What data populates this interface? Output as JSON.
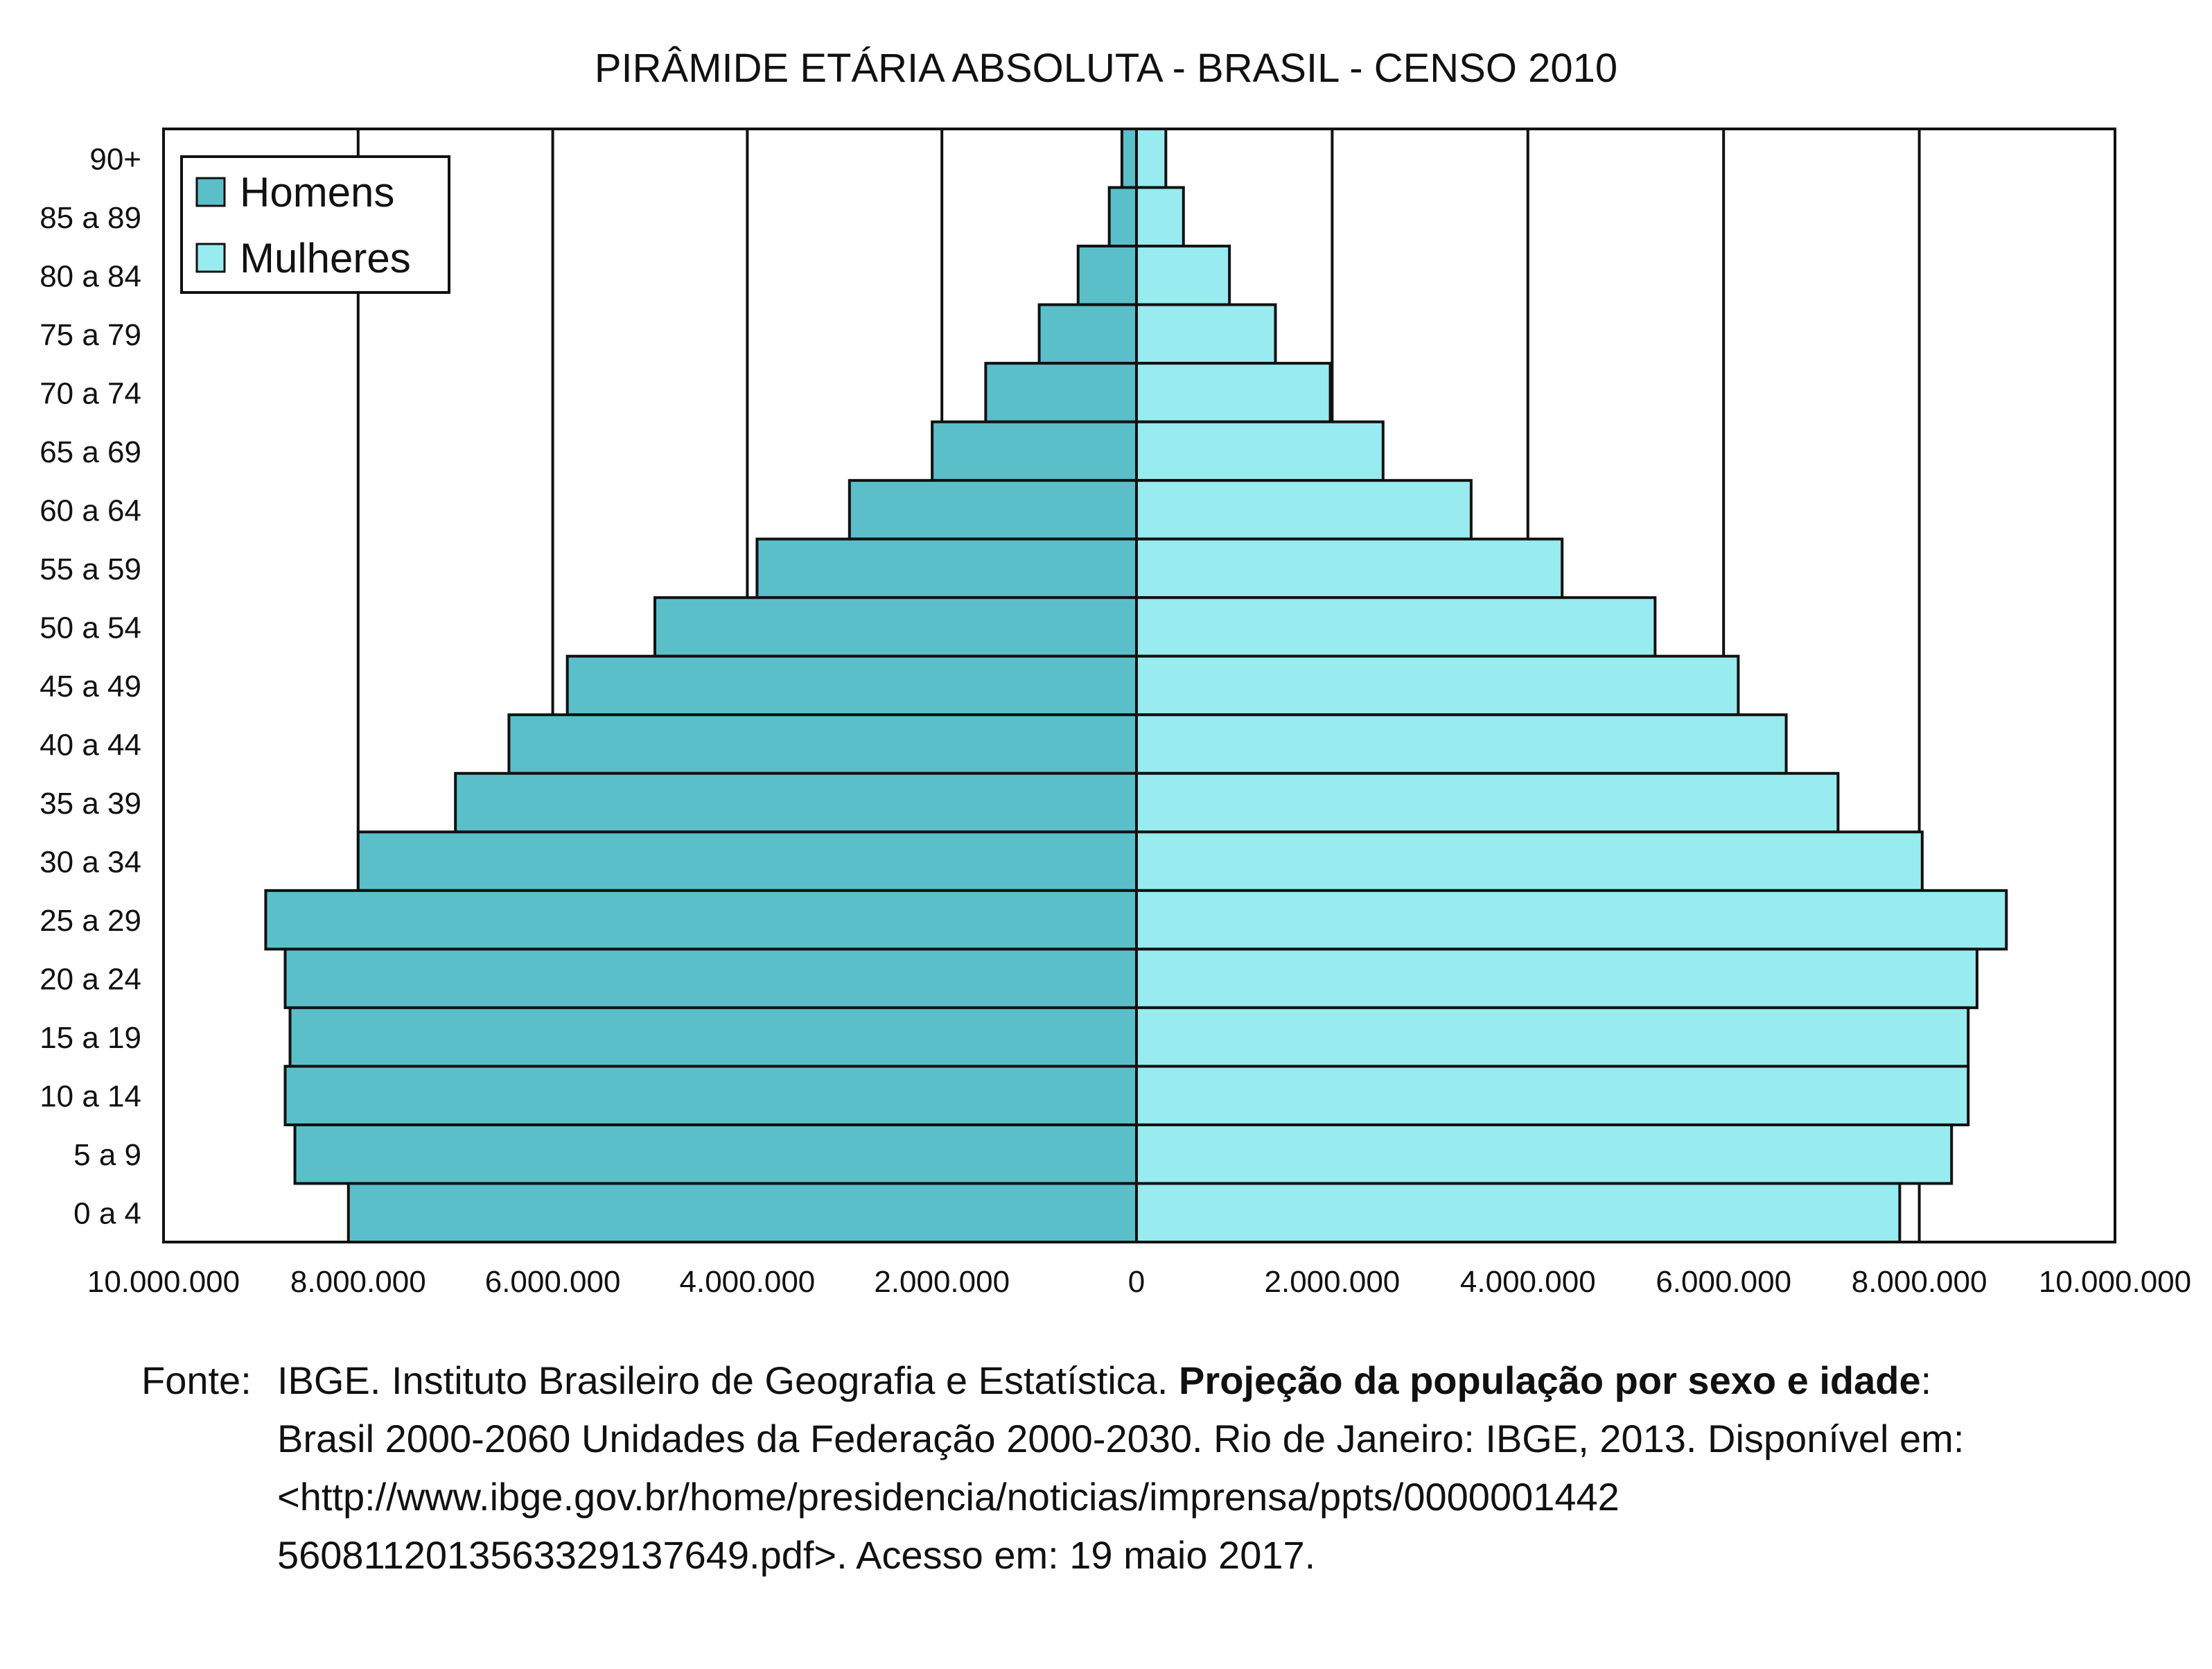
{
  "chart_data": {
    "type": "bar",
    "title": "PIRÂMIDE ETÁRIA ABSOLUTA - BRASIL - CENSO 2010",
    "categories": [
      "90+",
      "85 a 89",
      "80 a 84",
      "75 a 79",
      "70 a 74",
      "65 a 69",
      "60 a 64",
      "55 a 59",
      "50 a 54",
      "45 a 49",
      "40 a 44",
      "35 a 39",
      "30 a 34",
      "25 a 29",
      "20 a 24",
      "15 a 19",
      "10 a 14",
      "5 a 9",
      "0 a 4"
    ],
    "series": [
      {
        "name": "Homens",
        "color": "#5bbfca",
        "values": [
          150000,
          280000,
          600000,
          1000000,
          1550000,
          2100000,
          2950000,
          3900000,
          4950000,
          5850000,
          6450000,
          7000000,
          8000000,
          8950000,
          8750000,
          8700000,
          8750000,
          8650000,
          8100000
        ]
      },
      {
        "name": "Mulheres",
        "color": "#98ebee",
        "values": [
          300000,
          480000,
          950000,
          1420000,
          1980000,
          2520000,
          3420000,
          4350000,
          5300000,
          6150000,
          6640000,
          7170000,
          8030000,
          8890000,
          8590000,
          8500000,
          8500000,
          8330000,
          7800000
        ]
      }
    ],
    "xlim": [
      -10000000,
      10000000
    ],
    "xticks": [
      {
        "value": -10000000,
        "label": "10.000.000"
      },
      {
        "value": -8000000,
        "label": "8.000.000"
      },
      {
        "value": -6000000,
        "label": "6.000.000"
      },
      {
        "value": -4000000,
        "label": "4.000.000"
      },
      {
        "value": -2000000,
        "label": "2.000.000"
      },
      {
        "value": 0,
        "label": "0"
      },
      {
        "value": 2000000,
        "label": "2.000.000"
      },
      {
        "value": 4000000,
        "label": "4.000.000"
      },
      {
        "value": 6000000,
        "label": "6.000.000"
      },
      {
        "value": 8000000,
        "label": "8.000.000"
      },
      {
        "value": 10000000,
        "label": "10.000.000"
      }
    ],
    "grid": "vertical",
    "legend": "top-left"
  },
  "source": {
    "label": "Fonte:",
    "line1_pre": "IBGE. Instituto Brasileiro de Geografia e Estatística. ",
    "line1_bold": "Projeção da população por sexo e idade",
    "line1_post": ":",
    "line2": "Brasil 2000-2060 Unidades da Federação 2000-2030. Rio de Janeiro: IBGE, 2013. Disponível em:",
    "line3": "<http://www.ibge.gov.br/home/presidencia/noticias/imprensa/ppts/0000001442",
    "line4": "5608112013563329137649.pdf>. Acesso em: 19 maio 2017."
  }
}
